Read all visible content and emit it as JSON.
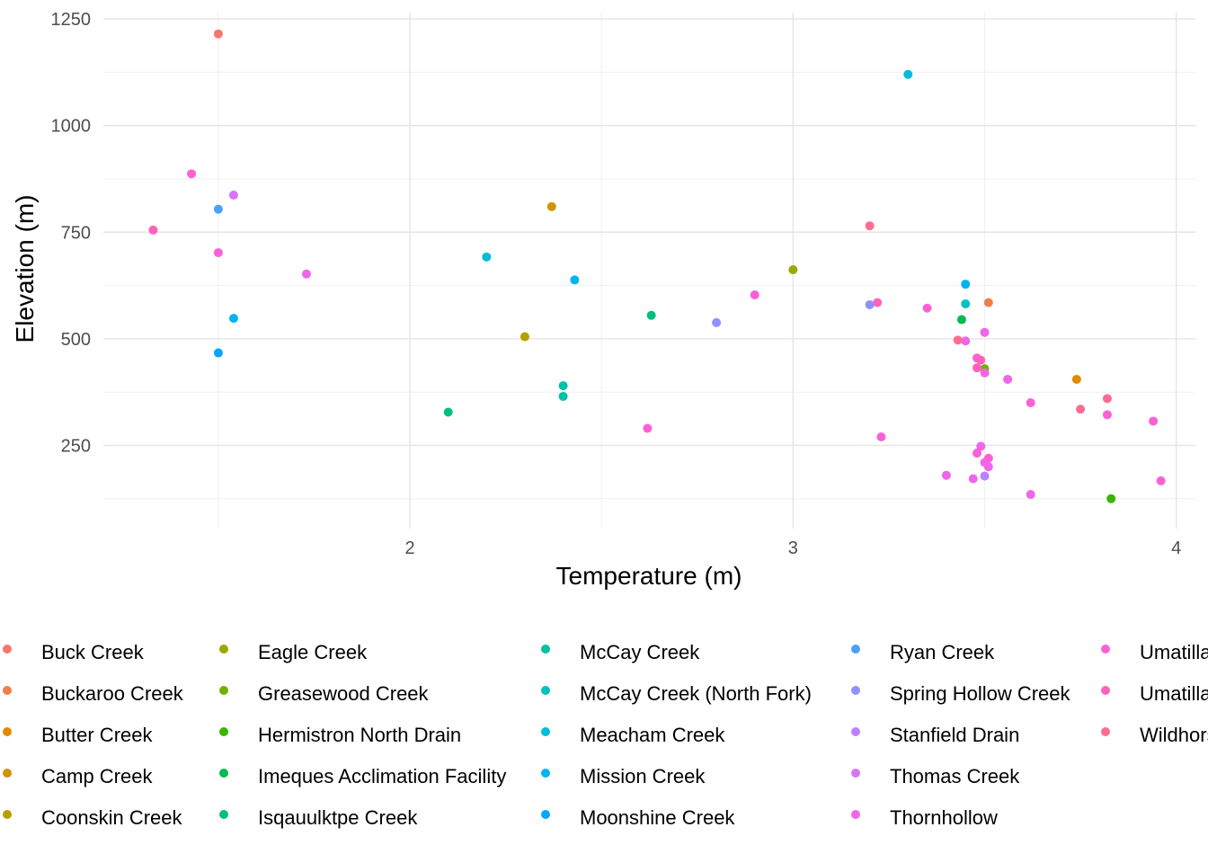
{
  "chart_data": {
    "type": "scatter",
    "title": "",
    "xlabel": "Temperature (m)",
    "ylabel": "Elevation (m)",
    "xlim": [
      1.2,
      4.05
    ],
    "ylim": [
      55,
      1265
    ],
    "x_ticks": [
      2,
      3,
      4
    ],
    "y_ticks": [
      250,
      500,
      750,
      1000,
      1250
    ],
    "grid": true,
    "legend_position": "bottom",
    "series": [
      {
        "name": "Buck Creek",
        "color": "#F8766D",
        "points": [
          [
            1.5,
            1215
          ]
        ]
      },
      {
        "name": "Buckaroo Creek",
        "color": "#EF7F49",
        "points": [
          [
            3.51,
            585
          ]
        ]
      },
      {
        "name": "Butter Creek",
        "color": "#E38900",
        "points": [
          [
            3.74,
            405
          ]
        ]
      },
      {
        "name": "Camp Creek",
        "color": "#D09400",
        "points": [
          [
            2.37,
            810
          ]
        ]
      },
      {
        "name": "Coonskin Creek",
        "color": "#B79F00",
        "points": [
          [
            2.3,
            505
          ]
        ]
      },
      {
        "name": "Eagle Creek",
        "color": "#9AA800",
        "points": [
          [
            3.0,
            662
          ]
        ]
      },
      {
        "name": "Greasewood Creek",
        "color": "#72B000",
        "points": [
          [
            3.5,
            430
          ]
        ]
      },
      {
        "name": "Hermistron North Drain",
        "color": "#39B600",
        "points": [
          [
            3.83,
            125
          ]
        ]
      },
      {
        "name": "Imeques Acclimation Facility",
        "color": "#00BB4E",
        "points": [
          [
            3.44,
            545
          ]
        ]
      },
      {
        "name": "Isqauulktpe Creek",
        "color": "#00BF7D",
        "points": [
          [
            2.63,
            555
          ],
          [
            2.1,
            328
          ]
        ]
      },
      {
        "name": "McCay Creek",
        "color": "#00C1A3",
        "points": [
          [
            2.4,
            390
          ],
          [
            2.4,
            365
          ]
        ]
      },
      {
        "name": "McCay Creek (North Fork)",
        "color": "#00C0C0",
        "points": [
          [
            3.45,
            582
          ]
        ]
      },
      {
        "name": "Meacham Creek",
        "color": "#00BCD8",
        "points": [
          [
            3.3,
            1120
          ],
          [
            2.2,
            692
          ]
        ]
      },
      {
        "name": "Mission Creek",
        "color": "#00B4EF",
        "points": [
          [
            1.54,
            548
          ],
          [
            2.43,
            638
          ],
          [
            3.45,
            628
          ]
        ]
      },
      {
        "name": "Moonshine Creek",
        "color": "#00A6FF",
        "points": [
          [
            1.5,
            467
          ]
        ]
      },
      {
        "name": "Ryan Creek",
        "color": "#4B9FFF",
        "points": [
          [
            1.5,
            804
          ]
        ]
      },
      {
        "name": "Spring Hollow Creek",
        "color": "#8F91FF",
        "points": [
          [
            2.8,
            538
          ],
          [
            3.2,
            580
          ]
        ]
      },
      {
        "name": "Stanfield Drain",
        "color": "#BB81FF",
        "points": [
          [
            3.5,
            178
          ]
        ]
      },
      {
        "name": "Thomas Creek",
        "color": "#DB72FB",
        "points": [
          [
            1.54,
            837
          ]
        ]
      },
      {
        "name": "Thornhollow",
        "color": "#F066EA",
        "points": [
          [
            1.73,
            652
          ],
          [
            3.5,
            515
          ],
          [
            3.45,
            495
          ],
          [
            3.5,
            420
          ],
          [
            3.56,
            405
          ],
          [
            3.49,
            248
          ],
          [
            3.5,
            210
          ],
          [
            3.51,
            200
          ],
          [
            3.4,
            180
          ],
          [
            3.62,
            135
          ],
          [
            3.47,
            172
          ]
        ]
      },
      {
        "name": "Umatilla",
        "color": "#FB61D7",
        "points": [
          [
            1.43,
            887
          ],
          [
            1.5,
            702
          ],
          [
            2.9,
            603
          ],
          [
            2.62,
            290
          ],
          [
            3.35,
            572
          ],
          [
            3.48,
            455
          ],
          [
            3.62,
            350
          ],
          [
            3.48,
            232
          ],
          [
            3.51,
            220
          ],
          [
            3.82,
            322
          ],
          [
            3.94,
            307
          ],
          [
            3.96,
            167
          ],
          [
            3.23,
            270
          ]
        ]
      },
      {
        "name": "Umatilla",
        "color": "#FF62BC",
        "points": [
          [
            1.33,
            755
          ],
          [
            3.22,
            585
          ],
          [
            3.48,
            432
          ],
          [
            3.49,
            450
          ]
        ]
      },
      {
        "name": "Wildhorse",
        "color": "#FF6C91",
        "points": [
          [
            3.2,
            765
          ],
          [
            3.43,
            497
          ],
          [
            3.75,
            335
          ],
          [
            3.82,
            360
          ]
        ]
      }
    ]
  }
}
